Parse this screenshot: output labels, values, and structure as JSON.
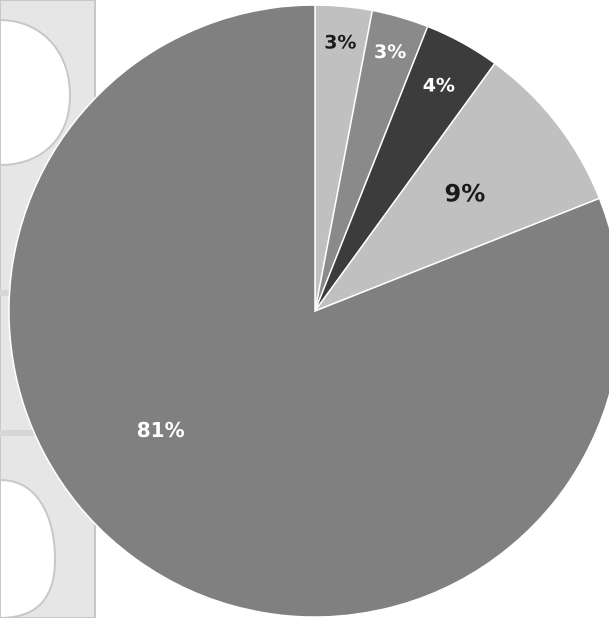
{
  "chart_data": {
    "type": "pie",
    "slices": [
      {
        "label": "3%",
        "value": 3,
        "color": "#c0c0c0",
        "label_color": "#1a1a1a"
      },
      {
        "label": "3%",
        "value": 3,
        "color": "#8a8a8a",
        "label_color": "#ffffff"
      },
      {
        "label": "4%",
        "value": 4,
        "color": "#3c3c3c",
        "label_color": "#ffffff"
      },
      {
        "label": "9%",
        "value": 9,
        "color": "#c0c0c0",
        "label_color": "#1a1a1a"
      },
      {
        "label": "81%",
        "value": 81,
        "color": "#808080",
        "label_color": "#ffffff"
      }
    ],
    "legend": "none",
    "grid": false
  },
  "colors": {
    "background": "#ffffff",
    "backdrop_shapes": "#e6e6e6",
    "backdrop_outline": "#c8c8c8"
  }
}
